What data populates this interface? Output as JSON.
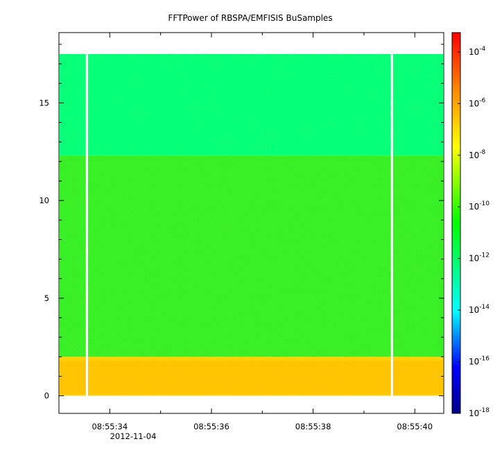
{
  "chart_data": {
    "type": "heatmap",
    "title": "FFTPower of RBSPA/EMFISIS  BuSamples",
    "xlabel": "",
    "ylabel": "",
    "x_ticks": [
      "08:55:34",
      "08:55:36",
      "08:55:38",
      "08:55:40"
    ],
    "x_tick_values": [
      34,
      36,
      38,
      40
    ],
    "x_date_label": "2012-11-04",
    "x_range": [
      33.0,
      40.57
    ],
    "y_ticks": [
      "0",
      "5",
      "10",
      "15"
    ],
    "y_tick_values": [
      0,
      5,
      10,
      15
    ],
    "y_range": [
      -0.9,
      18.6
    ],
    "data_y_extent": [
      0,
      17.5
    ],
    "data_gaps_x": [
      33.55,
      39.55
    ],
    "colorbar": {
      "scale": "log",
      "range_exponent": [
        -18,
        -3.25
      ],
      "tick_base": "10",
      "tick_exponents": [
        "-4",
        "-6",
        "-8",
        "-10",
        "-12",
        "-14",
        "-16",
        "-18"
      ],
      "colors": [
        "#000088",
        "#0000ff",
        "#00ffff",
        "#00ff00",
        "#ffff00",
        "#ff8800",
        "#ff0000"
      ]
    },
    "bands": [
      {
        "y_range": [
          0,
          2.0
        ],
        "log10_power": -8.7,
        "color": "#ffd200"
      },
      {
        "y_range": [
          2.0,
          12.3
        ],
        "log10_power": -10.3,
        "color": "#33ee22"
      },
      {
        "y_range": [
          12.3,
          17.5
        ],
        "log10_power": -11.6,
        "color": "#00ff77"
      }
    ]
  }
}
